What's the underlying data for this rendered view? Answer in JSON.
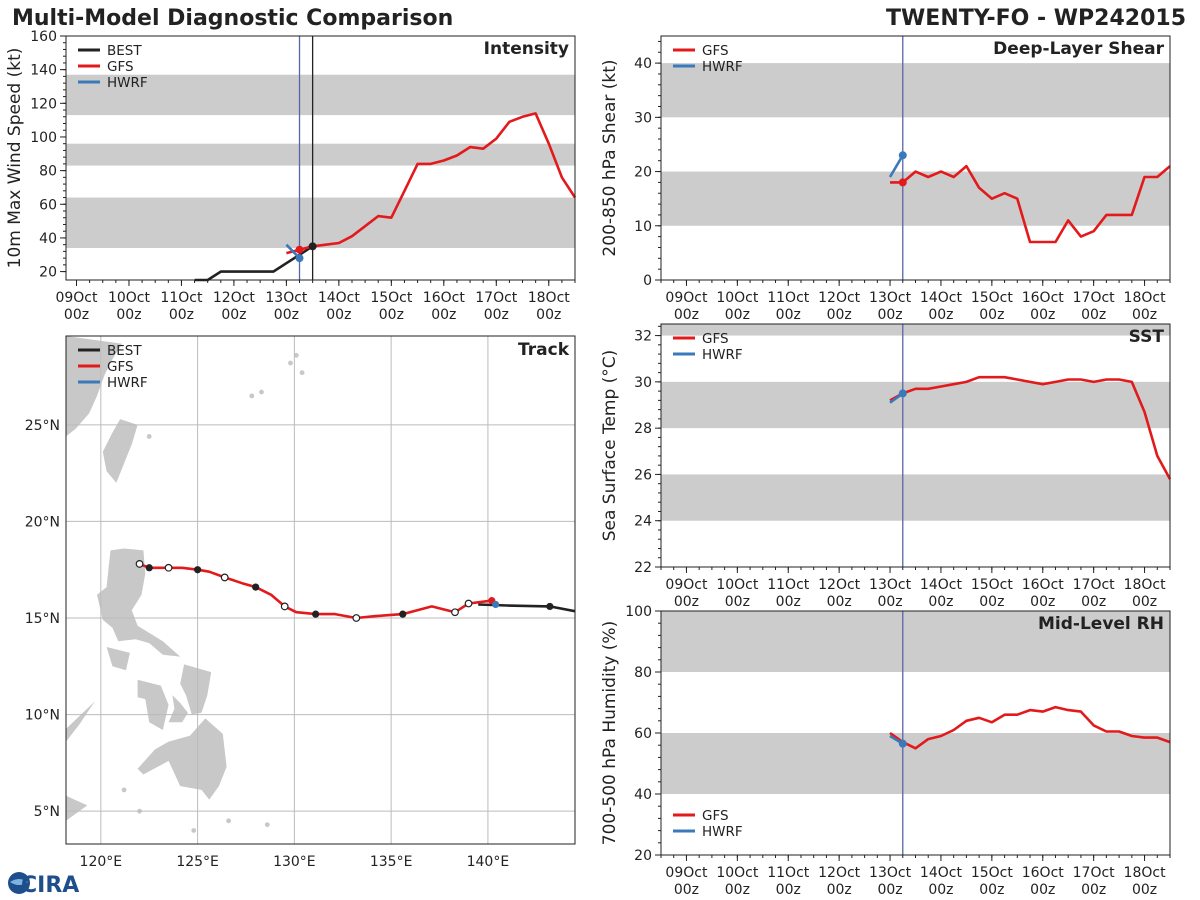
{
  "header": {
    "title_left": "Multi-Model Diagnostic Comparison",
    "title_right": "TWENTY-FO - WP242015"
  },
  "logo": {
    "text": "CIRA"
  },
  "colors": {
    "best": "#222222",
    "gfs": "#e31a1c",
    "hwrf": "#3a7ab8",
    "band": "#cccccc",
    "land": "#c8c8c8",
    "vline": "#5566aa"
  },
  "chart_data": [
    {
      "id": "intensity",
      "type": "line",
      "title": "Intensity",
      "ylabel": "10m Max Wind Speed (kt)",
      "xlabel": "",
      "x_unit": "days since 09Oct 00z",
      "xlim": [
        -0.2,
        9.5
      ],
      "ylim": [
        15,
        160
      ],
      "yticks": [
        20,
        40,
        60,
        80,
        100,
        120,
        140,
        160
      ],
      "xticks": [
        0,
        1,
        2,
        3,
        4,
        5,
        6,
        7,
        8,
        9
      ],
      "xtick_labels": [
        "09Oct",
        "10Oct",
        "11Oct",
        "12Oct",
        "13Oct",
        "14Oct",
        "15Oct",
        "16Oct",
        "17Oct",
        "18Oct"
      ],
      "xtick_sublabel": "00z",
      "legend": [
        "BEST",
        "GFS",
        "HWRF"
      ],
      "bands": [
        [
          34,
          64
        ],
        [
          83,
          96
        ],
        [
          113,
          137
        ]
      ],
      "vlines": [
        {
          "x": 4.25,
          "color": "vline"
        },
        {
          "x": 4.5,
          "color": "best"
        }
      ],
      "series": [
        {
          "name": "BEST",
          "color": "best",
          "x": [
            2.25,
            2.5,
            2.75,
            3.0,
            3.25,
            3.5,
            3.75,
            4.0,
            4.25,
            4.5
          ],
          "y": [
            15,
            15,
            20,
            20,
            20,
            20,
            20,
            25,
            30,
            35
          ]
        },
        {
          "name": "GFS",
          "color": "gfs",
          "x": [
            4.0,
            4.25,
            4.5,
            4.75,
            5.0,
            5.25,
            5.5,
            5.75,
            6.0,
            6.25,
            6.5,
            6.75,
            7.0,
            7.25,
            7.5,
            7.75,
            8.0,
            8.25,
            8.5,
            8.75,
            9.0,
            9.25,
            9.5
          ],
          "y": [
            31,
            33,
            35,
            36,
            37,
            41,
            47,
            53,
            52,
            68,
            84,
            84,
            86,
            89,
            94,
            93,
            99,
            109,
            112,
            114,
            96,
            76,
            64
          ]
        },
        {
          "name": "HWRF",
          "color": "hwrf",
          "x": [
            4.0,
            4.25
          ],
          "y": [
            36,
            28
          ]
        }
      ],
      "markers": [
        {
          "series": "BEST",
          "x": 4.5,
          "y": 35,
          "fill": "best"
        },
        {
          "series": "GFS",
          "x": 4.25,
          "y": 33,
          "fill": "gfs"
        },
        {
          "series": "HWRF",
          "x": 4.25,
          "y": 28,
          "fill": "hwrf"
        }
      ]
    },
    {
      "id": "shear",
      "type": "line",
      "title": "Deep-Layer Shear",
      "ylabel": "200-850 hPa Shear (kt)",
      "xlabel": "",
      "x_unit": "days since 09Oct 00z",
      "xlim": [
        -0.5,
        9.5
      ],
      "ylim": [
        0,
        45
      ],
      "yticks": [
        0,
        10,
        20,
        30,
        40
      ],
      "xticks": [
        0,
        1,
        2,
        3,
        4,
        5,
        6,
        7,
        8,
        9
      ],
      "xtick_labels": [
        "09Oct",
        "10Oct",
        "11Oct",
        "12Oct",
        "13Oct",
        "14Oct",
        "15Oct",
        "16Oct",
        "17Oct",
        "18Oct"
      ],
      "xtick_sublabel": "00z",
      "legend": [
        "GFS",
        "HWRF"
      ],
      "bands": [
        [
          10,
          20
        ],
        [
          30,
          40
        ]
      ],
      "vlines": [
        {
          "x": 4.25,
          "color": "vline"
        }
      ],
      "series": [
        {
          "name": "GFS",
          "color": "gfs",
          "x": [
            4.0,
            4.25,
            4.5,
            4.75,
            5.0,
            5.25,
            5.5,
            5.75,
            6.0,
            6.25,
            6.5,
            6.75,
            7.0,
            7.25,
            7.5,
            7.75,
            8.0,
            8.25,
            8.5,
            8.75,
            9.0,
            9.25,
            9.5
          ],
          "y": [
            18,
            18,
            20,
            19,
            20,
            19,
            21,
            17,
            15,
            16,
            15,
            7,
            7,
            7,
            11,
            8,
            9,
            12,
            12,
            12,
            19,
            19,
            21
          ]
        },
        {
          "name": "HWRF",
          "color": "hwrf",
          "x": [
            4.0,
            4.25
          ],
          "y": [
            19,
            23
          ]
        }
      ],
      "markers": [
        {
          "series": "GFS",
          "x": 4.25,
          "y": 18,
          "fill": "gfs"
        },
        {
          "series": "HWRF",
          "x": 4.25,
          "y": 23,
          "fill": "hwrf"
        }
      ]
    },
    {
      "id": "sst",
      "type": "line",
      "title": "SST",
      "ylabel": "Sea Surface Temp (°C)",
      "xlabel": "",
      "x_unit": "days since 09Oct 00z",
      "xlim": [
        -0.5,
        9.5
      ],
      "ylim": [
        22,
        32.5
      ],
      "yticks": [
        22,
        24,
        26,
        28,
        30,
        32
      ],
      "xticks": [
        0,
        1,
        2,
        3,
        4,
        5,
        6,
        7,
        8,
        9
      ],
      "xtick_labels": [
        "09Oct",
        "10Oct",
        "11Oct",
        "12Oct",
        "13Oct",
        "14Oct",
        "15Oct",
        "16Oct",
        "17Oct",
        "18Oct"
      ],
      "xtick_sublabel": "00z",
      "legend": [
        "GFS",
        "HWRF"
      ],
      "bands": [
        [
          24,
          26
        ],
        [
          28,
          30
        ],
        [
          32,
          32.5
        ]
      ],
      "vlines": [
        {
          "x": 4.25,
          "color": "vline"
        }
      ],
      "series": [
        {
          "name": "GFS",
          "color": "gfs",
          "x": [
            4.0,
            4.25,
            4.5,
            4.75,
            5.0,
            5.25,
            5.5,
            5.75,
            6.0,
            6.25,
            6.5,
            6.75,
            7.0,
            7.25,
            7.5,
            7.75,
            8.0,
            8.25,
            8.5,
            8.75,
            9.0,
            9.25,
            9.5
          ],
          "y": [
            29.2,
            29.5,
            29.7,
            29.7,
            29.8,
            29.9,
            30.0,
            30.2,
            30.2,
            30.2,
            30.1,
            30.0,
            29.9,
            30.0,
            30.1,
            30.1,
            30.0,
            30.1,
            30.1,
            30.0,
            28.7,
            26.8,
            25.8
          ]
        },
        {
          "name": "HWRF",
          "color": "hwrf",
          "x": [
            4.0,
            4.25
          ],
          "y": [
            29.1,
            29.5
          ]
        }
      ],
      "markers": [
        {
          "series": "HWRF",
          "x": 4.25,
          "y": 29.5,
          "fill": "hwrf"
        }
      ]
    },
    {
      "id": "rh",
      "type": "line",
      "title": "Mid-Level RH",
      "ylabel": "700-500 hPa Humidity (%)",
      "xlabel": "",
      "x_unit": "days since 09Oct 00z",
      "xlim": [
        -0.5,
        9.5
      ],
      "ylim": [
        20,
        100
      ],
      "yticks": [
        20,
        40,
        60,
        80,
        100
      ],
      "xticks": [
        0,
        1,
        2,
        3,
        4,
        5,
        6,
        7,
        8,
        9
      ],
      "xtick_labels": [
        "09Oct",
        "10Oct",
        "11Oct",
        "12Oct",
        "13Oct",
        "14Oct",
        "15Oct",
        "16Oct",
        "17Oct",
        "18Oct"
      ],
      "xtick_sublabel": "00z",
      "legend": [
        "GFS",
        "HWRF"
      ],
      "legend_position": "bottom-left",
      "bands": [
        [
          40,
          60
        ],
        [
          80,
          100
        ]
      ],
      "vlines": [
        {
          "x": 4.25,
          "color": "vline"
        }
      ],
      "series": [
        {
          "name": "GFS",
          "color": "gfs",
          "x": [
            4.0,
            4.25,
            4.5,
            4.75,
            5.0,
            5.25,
            5.5,
            5.75,
            6.0,
            6.25,
            6.5,
            6.75,
            7.0,
            7.25,
            7.5,
            7.75,
            8.0,
            8.25,
            8.5,
            8.75,
            9.0,
            9.25,
            9.5
          ],
          "y": [
            60,
            57,
            55,
            58,
            59,
            61,
            64,
            65,
            63.5,
            66,
            66,
            67.5,
            67,
            68.5,
            67.5,
            67,
            62.5,
            60.5,
            60.5,
            59,
            58.5,
            58.5,
            57
          ]
        },
        {
          "name": "HWRF",
          "color": "hwrf",
          "x": [
            4.0,
            4.25
          ],
          "y": [
            59,
            56.5
          ]
        }
      ],
      "markers": [
        {
          "series": "HWRF",
          "x": 4.25,
          "y": 56.5,
          "fill": "hwrf"
        }
      ]
    },
    {
      "id": "track",
      "type": "scatter",
      "title": "Track",
      "xlabel": "",
      "ylabel": "",
      "xlim": [
        118.2,
        144.5
      ],
      "ylim": [
        3.3,
        29.6
      ],
      "xticks": [
        120,
        125,
        130,
        135,
        140
      ],
      "xtick_labels": [
        "120°E",
        "125°E",
        "130°E",
        "135°E",
        "140°E"
      ],
      "yticks": [
        5,
        10,
        15,
        20,
        25
      ],
      "ytick_labels": [
        "5°N",
        "10°N",
        "15°N",
        "20°N",
        "25°N"
      ],
      "legend": [
        "BEST",
        "GFS",
        "HWRF"
      ],
      "series": [
        {
          "name": "BEST",
          "color": "best",
          "lon": [
            139.5,
            141.0,
            143.2,
            144.5
          ],
          "lat": [
            15.7,
            15.65,
            15.6,
            15.35
          ]
        },
        {
          "name": "GFS",
          "color": "gfs",
          "lon": [
            140.2,
            139.0,
            138.3,
            137.1,
            135.6,
            134.2,
            133.2,
            132.1,
            131.1,
            130.1,
            129.5,
            128.8,
            128.0,
            127.3,
            126.4,
            125.6,
            125.0,
            124.2,
            123.5,
            122.5,
            122.0
          ],
          "lat": [
            15.9,
            15.75,
            15.3,
            15.6,
            15.2,
            15.1,
            15.0,
            15.2,
            15.2,
            15.3,
            15.6,
            16.2,
            16.6,
            16.8,
            17.1,
            17.4,
            17.5,
            17.6,
            17.6,
            17.6,
            17.8
          ]
        },
        {
          "name": "HWRF",
          "color": "hwrf",
          "lon": [
            140.4
          ],
          "lat": [
            15.7
          ]
        }
      ],
      "points": [
        {
          "lon": 143.2,
          "lat": 15.6,
          "style": "filled",
          "color": "best"
        },
        {
          "lon": 140.2,
          "lat": 15.9,
          "style": "filled",
          "color": "gfs"
        },
        {
          "lon": 140.4,
          "lat": 15.7,
          "style": "filled",
          "color": "hwrf"
        },
        {
          "lon": 139.0,
          "lat": 15.75,
          "style": "open"
        },
        {
          "lon": 138.3,
          "lat": 15.3,
          "style": "open"
        },
        {
          "lon": 135.6,
          "lat": 15.2,
          "style": "filled",
          "color": "best"
        },
        {
          "lon": 133.2,
          "lat": 15.0,
          "style": "open"
        },
        {
          "lon": 131.1,
          "lat": 15.2,
          "style": "filled",
          "color": "best"
        },
        {
          "lon": 129.5,
          "lat": 15.6,
          "style": "open"
        },
        {
          "lon": 128.0,
          "lat": 16.6,
          "style": "filled",
          "color": "best"
        },
        {
          "lon": 126.4,
          "lat": 17.1,
          "style": "open"
        },
        {
          "lon": 125.0,
          "lat": 17.5,
          "style": "filled",
          "color": "best"
        },
        {
          "lon": 123.5,
          "lat": 17.6,
          "style": "open"
        },
        {
          "lon": 122.5,
          "lat": 17.6,
          "style": "filled",
          "color": "best"
        },
        {
          "lon": 122.0,
          "lat": 17.8,
          "style": "open"
        }
      ]
    }
  ]
}
